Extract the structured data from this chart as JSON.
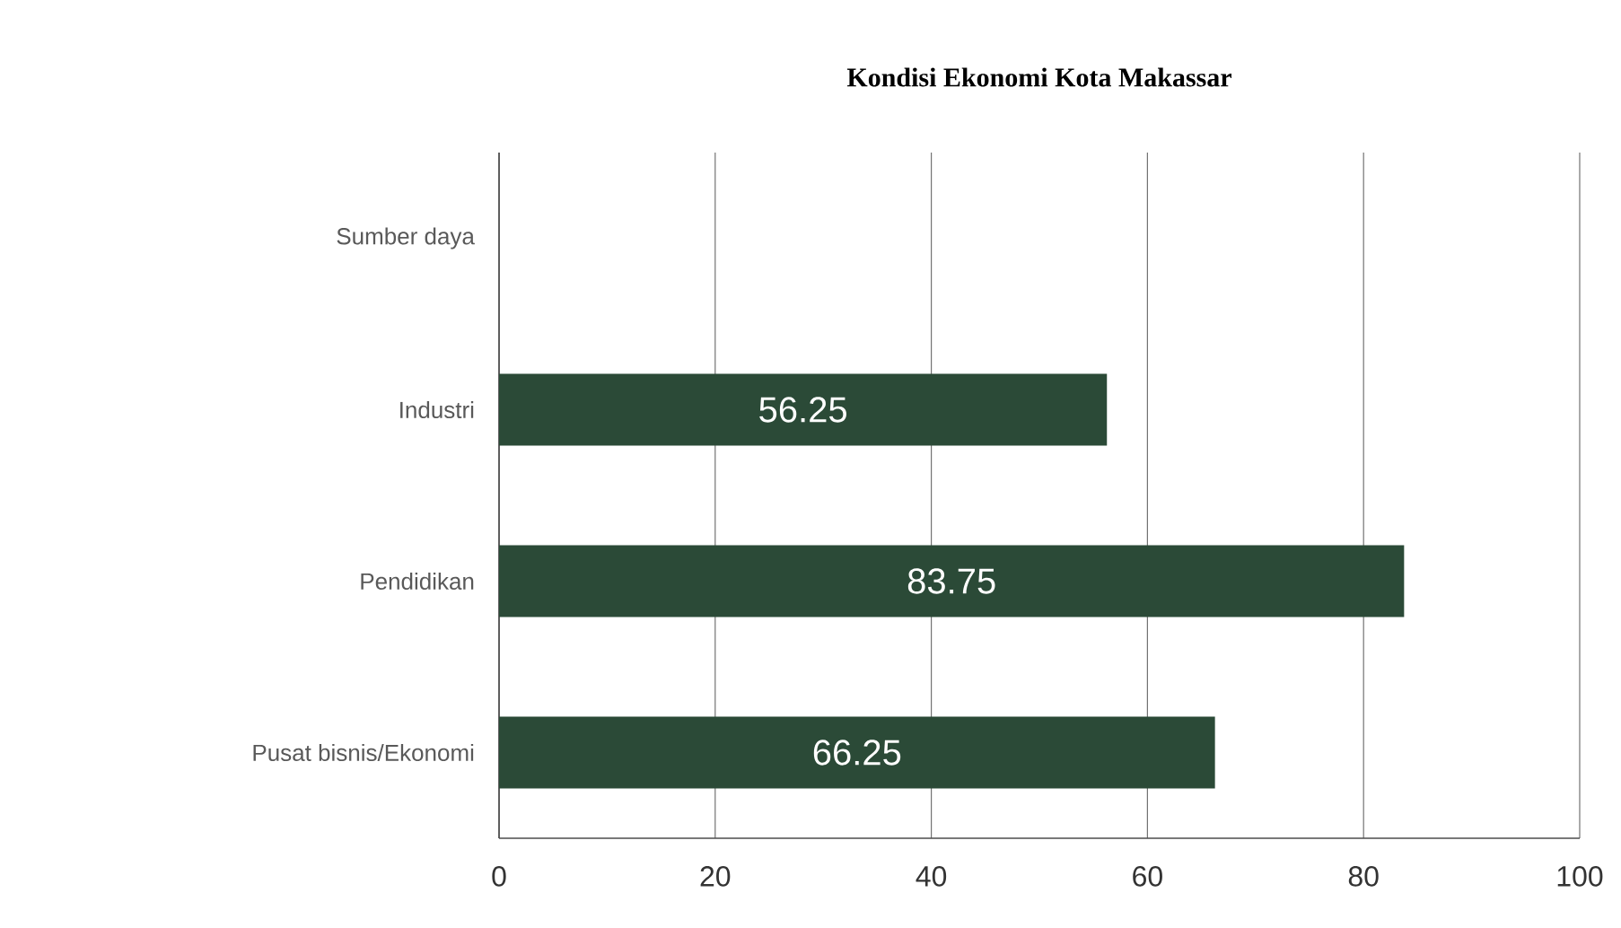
{
  "chart_data": {
    "type": "bar",
    "orientation": "horizontal",
    "title": "Kondisi Ekonomi Kota Makassar",
    "categories": [
      "Sumber daya",
      "Industri",
      "Pendidikan",
      "Pusat bisnis/Ekonomi"
    ],
    "values": [
      null,
      56.25,
      83.75,
      66.25
    ],
    "color": "#2b4a37",
    "xlim": [
      0,
      100
    ],
    "xticks": [
      0,
      20,
      40,
      60,
      80,
      100
    ],
    "grid": "x",
    "data_labels": true
  }
}
